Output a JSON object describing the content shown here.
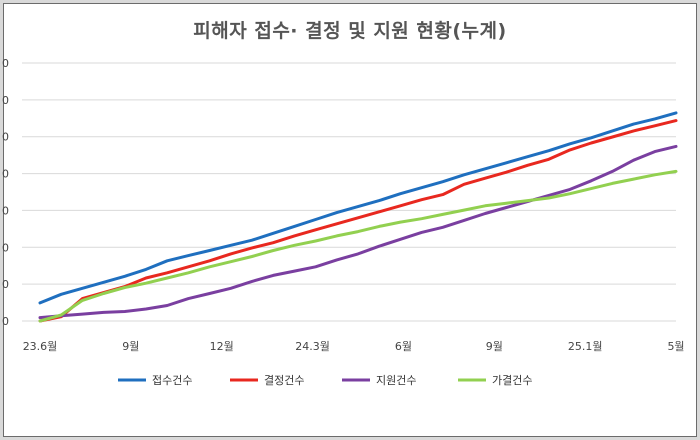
{
  "chart_data": {
    "type": "line",
    "title": "피해자 접수· 결정 및 지원 현황(누계)",
    "x_tick_labels": [
      "23.6월",
      "9월",
      "12월",
      "24.3월",
      "6월",
      "9월",
      "25.1월",
      "5월"
    ],
    "y_tick_labels": [
      "0",
      "0",
      "0",
      "0",
      "0",
      "0",
      "0",
      "0"
    ],
    "ylim": [
      0,
      30
    ],
    "grid": true,
    "legend_position": "bottom",
    "series": [
      {
        "name": "접수건수",
        "color": "#1f6fbf",
        "values": [
          2.1,
          3.1,
          3.8,
          4.5,
          5.2,
          6.0,
          7.0,
          7.6,
          8.2,
          8.8,
          9.4,
          10.2,
          11.0,
          11.8,
          12.6,
          13.3,
          14.0,
          14.8,
          15.5,
          16.2,
          17.0,
          17.7,
          18.4,
          19.1,
          19.8,
          20.6,
          21.3,
          22.1,
          22.9,
          23.5,
          24.2
        ]
      },
      {
        "name": "결정건수",
        "color": "#e8281f",
        "values": [
          0.0,
          0.5,
          2.6,
          3.3,
          4.0,
          5.0,
          5.6,
          6.3,
          7.0,
          7.8,
          8.5,
          9.1,
          9.9,
          10.6,
          11.3,
          12.0,
          12.7,
          13.4,
          14.1,
          14.7,
          15.9,
          16.6,
          17.3,
          18.1,
          18.8,
          19.9,
          20.7,
          21.4,
          22.1,
          22.7,
          23.3
        ]
      },
      {
        "name": "지원건수",
        "color": "#7a3fa0",
        "values": [
          0.4,
          0.6,
          0.8,
          1.0,
          1.1,
          1.4,
          1.8,
          2.6,
          3.2,
          3.8,
          4.6,
          5.3,
          5.8,
          6.3,
          7.1,
          7.8,
          8.7,
          9.5,
          10.3,
          10.9,
          11.7,
          12.5,
          13.2,
          13.9,
          14.6,
          15.3,
          16.3,
          17.4,
          18.7,
          19.7,
          20.3
        ]
      },
      {
        "name": "가결건수",
        "color": "#92d050",
        "values": [
          0.0,
          0.7,
          2.4,
          3.2,
          3.9,
          4.4,
          5.0,
          5.6,
          6.3,
          6.9,
          7.5,
          8.2,
          8.8,
          9.3,
          9.9,
          10.4,
          11.0,
          11.5,
          11.9,
          12.4,
          12.9,
          13.4,
          13.7,
          14.0,
          14.3,
          14.8,
          15.4,
          16.0,
          16.5,
          17.0,
          17.4
        ]
      }
    ]
  }
}
